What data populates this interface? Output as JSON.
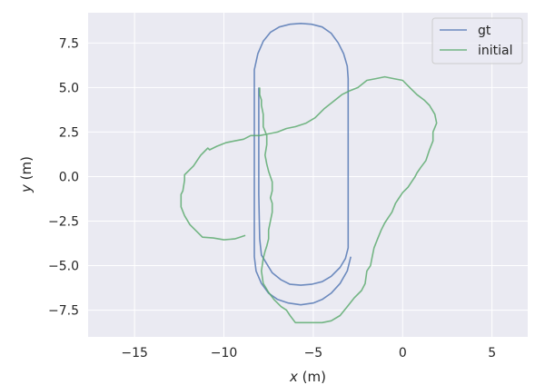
{
  "chart_data": {
    "type": "line",
    "title": "",
    "xlabel": "x (m)",
    "ylabel": "y (m)",
    "xlabel_var": "x",
    "xlabel_unit": " (m)",
    "ylabel_var": "y",
    "ylabel_unit": " (m)",
    "xlim": [
      -17.6,
      7.0
    ],
    "ylim": [
      -9.0,
      9.2
    ],
    "xticks": [
      -15,
      -10,
      -5,
      0,
      5
    ],
    "xtick_labels": [
      "−15",
      "−10",
      "−5",
      "0",
      "5"
    ],
    "yticks": [
      -7.5,
      -5.0,
      -2.5,
      0.0,
      2.5,
      5.0,
      7.5
    ],
    "ytick_labels": [
      "−7.5",
      "−5.0",
      "−2.5",
      "0.0",
      "2.5",
      "5.0",
      "7.5"
    ],
    "grid": true,
    "legend_position": "top-right",
    "series": [
      {
        "name": "gt",
        "color": "#4c72b0",
        "x": [
          -2.9,
          -3.1,
          -3.5,
          -4.0,
          -4.5,
          -5.0,
          -5.7,
          -6.4,
          -7.0,
          -7.5,
          -7.9,
          -8.2,
          -8.3,
          -8.3,
          -8.3,
          -8.3,
          -8.3,
          -8.3,
          -8.3,
          -8.1,
          -7.8,
          -7.4,
          -6.9,
          -6.3,
          -5.7,
          -5.1,
          -4.5,
          -4.0,
          -3.6,
          -3.3,
          -3.1,
          -3.05,
          -3.05,
          -3.05,
          -3.05,
          -3.05,
          -3.05,
          -3.2,
          -3.5,
          -4.0,
          -4.5,
          -5.1,
          -5.7,
          -6.3,
          -6.8,
          -7.3,
          -7.6,
          -7.9,
          -8.0,
          -8.05,
          -8.05
        ],
        "y": [
          -4.5,
          -5.3,
          -6.0,
          -6.55,
          -6.9,
          -7.1,
          -7.2,
          -7.1,
          -6.9,
          -6.55,
          -6.0,
          -5.3,
          -4.5,
          -3.0,
          -1.0,
          1.0,
          3.0,
          4.5,
          6.0,
          6.9,
          7.6,
          8.1,
          8.4,
          8.55,
          8.6,
          8.55,
          8.4,
          8.05,
          7.5,
          6.9,
          6.2,
          5.5,
          3.5,
          1.0,
          -1.5,
          -3.5,
          -4.0,
          -4.6,
          -5.1,
          -5.6,
          -5.9,
          -6.05,
          -6.1,
          -6.05,
          -5.8,
          -5.4,
          -4.9,
          -4.4,
          -3.5,
          -1.0,
          5.0
        ]
      },
      {
        "name": "initial",
        "color": "#55a868",
        "x": [
          -8.8,
          -9.1,
          -9.4,
          -10.0,
          -10.6,
          -11.2,
          -11.6,
          -11.9,
          -12.2,
          -12.4,
          -12.4,
          -12.3,
          -12.2,
          -12.2,
          -12.0,
          -11.7,
          -11.5,
          -11.3,
          -11.1,
          -10.9,
          -10.8,
          -10.4,
          -9.9,
          -9.4,
          -8.9,
          -8.5,
          -8.0,
          -7.5,
          -7.0,
          -6.5,
          -6.0,
          -5.4,
          -4.9,
          -4.4,
          -3.9,
          -3.4,
          -3.0,
          -2.5,
          -2.0,
          -1.5,
          -1.0,
          -0.5,
          0.0,
          0.4,
          0.6,
          0.8,
          1.2,
          1.5,
          1.8,
          1.9,
          1.7,
          1.7,
          1.5,
          1.3,
          1.0,
          0.8,
          0.7,
          0.5,
          0.3,
          0.0,
          -0.2,
          -0.4,
          -0.6,
          -0.8,
          -1.0,
          -1.2,
          -1.4,
          -1.6,
          -1.7,
          -1.8,
          -2.0,
          -2.1,
          -2.3,
          -2.7,
          -3.1,
          -3.5,
          -4.0,
          -4.5,
          -5.0,
          -5.5,
          -6.0,
          -6.3,
          -6.5,
          -6.8,
          -7.2,
          -7.5,
          -7.8,
          -7.9,
          -7.8,
          -7.7,
          -7.6,
          -7.5,
          -7.5,
          -7.4,
          -7.3,
          -7.3,
          -7.4,
          -7.3,
          -7.3,
          -7.4,
          -7.5,
          -7.6,
          -7.7,
          -7.6,
          -7.6,
          -7.8,
          -7.8,
          -7.9,
          -7.9,
          -8.0,
          -8.0
        ],
        "y": [
          -3.3,
          -3.4,
          -3.5,
          -3.55,
          -3.45,
          -3.4,
          -3.0,
          -2.7,
          -2.2,
          -1.7,
          -1.0,
          -0.8,
          -0.2,
          0.1,
          0.3,
          0.6,
          0.9,
          1.2,
          1.4,
          1.6,
          1.5,
          1.7,
          1.9,
          2.0,
          2.1,
          2.3,
          2.3,
          2.4,
          2.5,
          2.7,
          2.8,
          3.0,
          3.3,
          3.8,
          4.2,
          4.6,
          4.8,
          5.0,
          5.4,
          5.5,
          5.6,
          5.5,
          5.4,
          5.0,
          4.8,
          4.6,
          4.3,
          4.0,
          3.5,
          3.0,
          2.5,
          2.0,
          1.5,
          0.9,
          0.5,
          0.2,
          0.0,
          -0.3,
          -0.6,
          -0.9,
          -1.2,
          -1.5,
          -2.0,
          -2.3,
          -2.6,
          -3.0,
          -3.5,
          -4.0,
          -4.5,
          -5.0,
          -5.3,
          -6.0,
          -6.4,
          -6.8,
          -7.3,
          -7.8,
          -8.1,
          -8.2,
          -8.2,
          -8.2,
          -8.2,
          -7.8,
          -7.5,
          -7.3,
          -6.9,
          -6.5,
          -6.0,
          -5.3,
          -4.6,
          -4.2,
          -3.9,
          -3.5,
          -3.0,
          -2.5,
          -2.0,
          -1.5,
          -1.2,
          -0.8,
          -0.3,
          0.0,
          0.3,
          0.7,
          1.2,
          1.8,
          2.3,
          2.8,
          3.5,
          4.0,
          4.3,
          4.6,
          5.0
        ]
      }
    ]
  }
}
